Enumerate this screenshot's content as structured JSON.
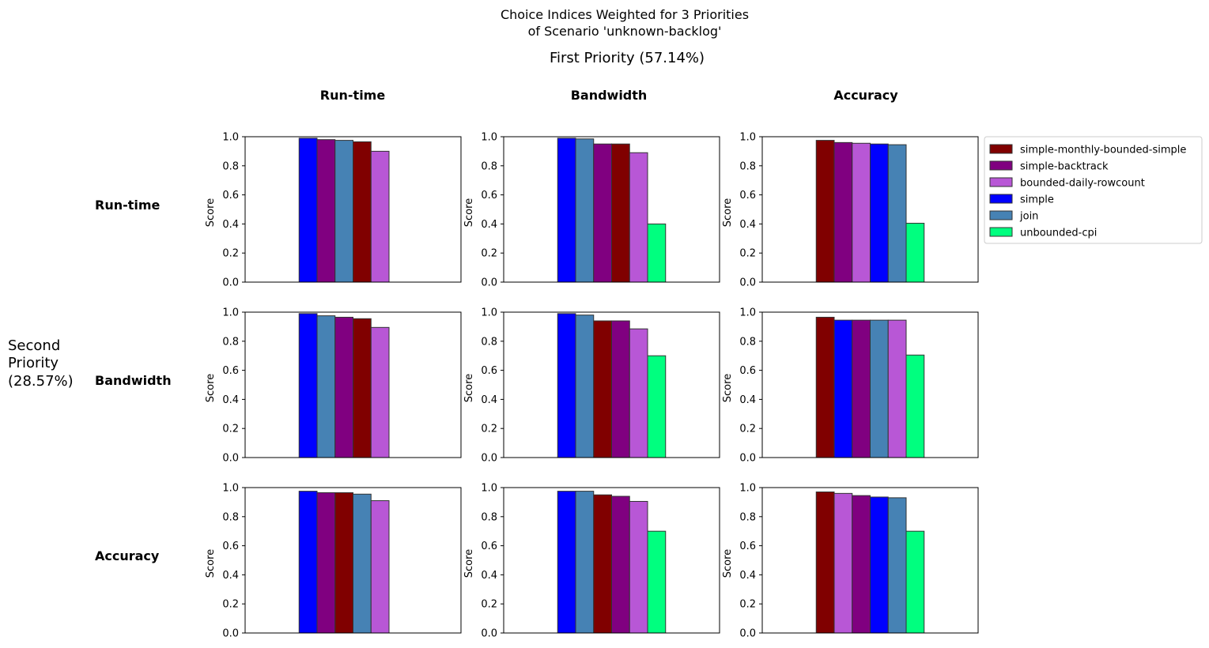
{
  "figure": {
    "title_line1": "Choice Indices Weighted for 3 Priorities",
    "title_line2": "of Scenario 'unknown-backlog'",
    "first_priority_label": "First Priority (57.14%)",
    "second_priority_label_lines": [
      "Second",
      "Priority",
      "(28.57%)"
    ]
  },
  "colors": {
    "simple-monthly-bounded-simple": "#800000",
    "simple-backtrack": "#800080",
    "bounded-daily-rowcount": "#b857d6",
    "simple": "#0000ff",
    "join": "#4682b4",
    "unbounded-cpi": "#00ff7f"
  },
  "legend": [
    "simple-monthly-bounded-simple",
    "simple-backtrack",
    "bounded-daily-rowcount",
    "simple",
    "join",
    "unbounded-cpi"
  ],
  "column_headers": [
    "Run-time",
    "Bandwidth",
    "Accuracy"
  ],
  "row_headers": [
    "Run-time",
    "Bandwidth",
    "Accuracy"
  ],
  "chart_data": {
    "type": "bar",
    "ylabel": "Score",
    "ylim": [
      0,
      1
    ],
    "yticks": [
      "0.0",
      "0.2",
      "0.4",
      "0.6",
      "0.8",
      "1.0"
    ],
    "legend_position": "right",
    "grid": false,
    "panels": [
      {
        "first_priority": "Run-time",
        "second_priority": "Run-time",
        "bars": [
          {
            "name": "simple",
            "value": 0.99
          },
          {
            "name": "simple-backtrack",
            "value": 0.98
          },
          {
            "name": "join",
            "value": 0.975
          },
          {
            "name": "simple-monthly-bounded-simple",
            "value": 0.965
          },
          {
            "name": "bounded-daily-rowcount",
            "value": 0.9
          },
          {
            "name": "unbounded-cpi",
            "value": 0.0
          }
        ]
      },
      {
        "first_priority": "Bandwidth",
        "second_priority": "Run-time",
        "bars": [
          {
            "name": "simple",
            "value": 0.99
          },
          {
            "name": "join",
            "value": 0.985
          },
          {
            "name": "simple-backtrack",
            "value": 0.95
          },
          {
            "name": "simple-monthly-bounded-simple",
            "value": 0.95
          },
          {
            "name": "bounded-daily-rowcount",
            "value": 0.89
          },
          {
            "name": "unbounded-cpi",
            "value": 0.4
          }
        ]
      },
      {
        "first_priority": "Accuracy",
        "second_priority": "Run-time",
        "bars": [
          {
            "name": "simple-monthly-bounded-simple",
            "value": 0.975
          },
          {
            "name": "simple-backtrack",
            "value": 0.96
          },
          {
            "name": "bounded-daily-rowcount",
            "value": 0.955
          },
          {
            "name": "simple",
            "value": 0.95
          },
          {
            "name": "join",
            "value": 0.945
          },
          {
            "name": "unbounded-cpi",
            "value": 0.405
          }
        ]
      },
      {
        "first_priority": "Run-time",
        "second_priority": "Bandwidth",
        "bars": [
          {
            "name": "simple",
            "value": 0.99
          },
          {
            "name": "join",
            "value": 0.975
          },
          {
            "name": "simple-backtrack",
            "value": 0.965
          },
          {
            "name": "simple-monthly-bounded-simple",
            "value": 0.955
          },
          {
            "name": "bounded-daily-rowcount",
            "value": 0.895
          },
          {
            "name": "unbounded-cpi",
            "value": 0.0
          }
        ]
      },
      {
        "first_priority": "Bandwidth",
        "second_priority": "Bandwidth",
        "bars": [
          {
            "name": "simple",
            "value": 0.99
          },
          {
            "name": "join",
            "value": 0.98
          },
          {
            "name": "simple-monthly-bounded-simple",
            "value": 0.94
          },
          {
            "name": "simple-backtrack",
            "value": 0.94
          },
          {
            "name": "bounded-daily-rowcount",
            "value": 0.885
          },
          {
            "name": "unbounded-cpi",
            "value": 0.7
          }
        ]
      },
      {
        "first_priority": "Accuracy",
        "second_priority": "Bandwidth",
        "bars": [
          {
            "name": "simple-monthly-bounded-simple",
            "value": 0.965
          },
          {
            "name": "simple",
            "value": 0.945
          },
          {
            "name": "simple-backtrack",
            "value": 0.945
          },
          {
            "name": "join",
            "value": 0.945
          },
          {
            "name": "bounded-daily-rowcount",
            "value": 0.945
          },
          {
            "name": "unbounded-cpi",
            "value": 0.705
          }
        ]
      },
      {
        "first_priority": "Run-time",
        "second_priority": "Accuracy",
        "bars": [
          {
            "name": "simple",
            "value": 0.975
          },
          {
            "name": "simple-backtrack",
            "value": 0.965
          },
          {
            "name": "simple-monthly-bounded-simple",
            "value": 0.965
          },
          {
            "name": "join",
            "value": 0.955
          },
          {
            "name": "bounded-daily-rowcount",
            "value": 0.91
          },
          {
            "name": "unbounded-cpi",
            "value": 0.0
          }
        ]
      },
      {
        "first_priority": "Bandwidth",
        "second_priority": "Accuracy",
        "bars": [
          {
            "name": "simple",
            "value": 0.975
          },
          {
            "name": "join",
            "value": 0.975
          },
          {
            "name": "simple-monthly-bounded-simple",
            "value": 0.95
          },
          {
            "name": "simple-backtrack",
            "value": 0.94
          },
          {
            "name": "bounded-daily-rowcount",
            "value": 0.905
          },
          {
            "name": "unbounded-cpi",
            "value": 0.7
          }
        ]
      },
      {
        "first_priority": "Accuracy",
        "second_priority": "Accuracy",
        "bars": [
          {
            "name": "simple-monthly-bounded-simple",
            "value": 0.97
          },
          {
            "name": "bounded-daily-rowcount",
            "value": 0.96
          },
          {
            "name": "simple-backtrack",
            "value": 0.945
          },
          {
            "name": "simple",
            "value": 0.935
          },
          {
            "name": "join",
            "value": 0.93
          },
          {
            "name": "unbounded-cpi",
            "value": 0.7
          }
        ]
      }
    ]
  }
}
